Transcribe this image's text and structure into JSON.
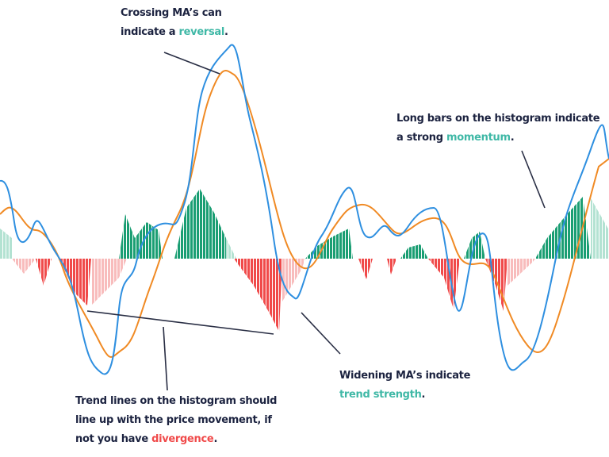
{
  "annotations": [
    {
      "lines": [
        [
          "Crossing MA’s can"
        ],
        [
          "indicate a ",
          {
            "text": "reversal",
            "color": "#3fb8a6"
          },
          "."
        ]
      ]
    },
    {
      "lines": [
        [
          "Long bars on the histogram indicate"
        ],
        [
          "a strong ",
          {
            "text": "momentum",
            "color": "#3fb8a6"
          },
          "."
        ]
      ]
    },
    {
      "lines": [
        [
          "Widening MA’s indicate"
        ],
        [
          {
            "text": "trend strength",
            "color": "#3fb8a6"
          },
          "."
        ]
      ]
    },
    {
      "lines": [
        [
          "Trend lines on the histogram should"
        ],
        [
          "line up with the price movement, if"
        ],
        [
          "not you have ",
          {
            "text": "divergence",
            "color": "#f04a4a"
          },
          "."
        ]
      ]
    }
  ]
}
